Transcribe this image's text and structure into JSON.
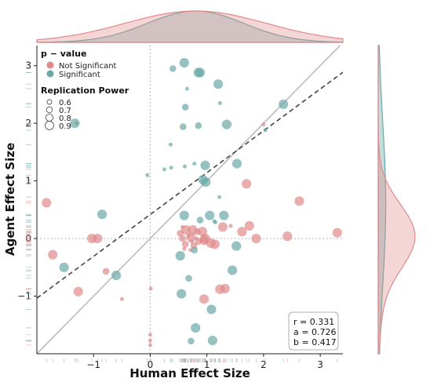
{
  "chart_data": {
    "type": "scatter",
    "xlabel": "Human Effect Size",
    "ylabel": "Agent Effect Size",
    "xlim": [
      -2.0,
      3.4
    ],
    "ylim": [
      -2.0,
      3.35
    ],
    "x_ticks": [
      "−1",
      "0",
      "1",
      "2",
      "3"
    ],
    "x_tick_values": [
      -1,
      0,
      1,
      2,
      3
    ],
    "y_ticks": [
      "−1",
      "0",
      "1",
      "2",
      "3"
    ],
    "y_tick_values": [
      -1,
      0,
      1,
      2,
      3
    ],
    "grid": false,
    "reference_lines": {
      "identity": {
        "slope": 1,
        "intercept": 0,
        "style": "solid"
      },
      "fit": {
        "slope": 0.726,
        "intercept": 0.417,
        "style": "dashed"
      },
      "zero_lines": "dotted"
    },
    "legend": {
      "placement": "top-left",
      "color_title": "p − value",
      "color_entries": [
        {
          "label": "Not Significant",
          "color": "#e08a8a"
        },
        {
          "label": "Significant",
          "color": "#6aa8a8"
        }
      ],
      "size_title": "Replication Power",
      "size_entries": [
        "0.6",
        "0.7",
        "0.8",
        "0.9"
      ]
    },
    "stats": {
      "r": "r = 0.331",
      "a": "a = 0.726",
      "b": "b = 0.417"
    },
    "colors": {
      "not_significant": "#e08a8a",
      "significant": "#6aa8a8",
      "identity_line": "#bbbbbb",
      "fit_line": "#444444"
    },
    "series": [
      {
        "name": "Not Significant",
        "points": [
          {
            "x": -1.83,
            "y": 0.62,
            "power": 0.8
          },
          {
            "x": -1.72,
            "y": -0.28,
            "power": 0.8
          },
          {
            "x": -1.3,
            "y": 2.0,
            "power": 0.6
          },
          {
            "x": -1.27,
            "y": -0.92,
            "power": 0.8
          },
          {
            "x": -1.03,
            "y": 0.0,
            "power": 0.8
          },
          {
            "x": -0.93,
            "y": 0.0,
            "power": 0.8
          },
          {
            "x": -0.78,
            "y": -0.57,
            "power": 0.7
          },
          {
            "x": -0.5,
            "y": -1.05,
            "power": 0.6
          },
          {
            "x": 0.01,
            "y": -0.87,
            "power": 0.6
          },
          {
            "x": 0.0,
            "y": -1.67,
            "power": 0.6
          },
          {
            "x": 0.0,
            "y": -1.77,
            "power": 0.6
          },
          {
            "x": 0.0,
            "y": -1.85,
            "power": 0.6
          },
          {
            "x": 0.53,
            "y": 0.09,
            "power": 0.7
          },
          {
            "x": 0.57,
            "y": 0.0,
            "power": 0.7
          },
          {
            "x": 0.62,
            "y": -0.1,
            "power": 0.7
          },
          {
            "x": 0.63,
            "y": 0.15,
            "power": 0.8
          },
          {
            "x": 0.68,
            "y": 0.05,
            "power": 0.6
          },
          {
            "x": 0.72,
            "y": 0.02,
            "power": 0.8
          },
          {
            "x": 0.73,
            "y": -0.05,
            "power": 0.6
          },
          {
            "x": 0.75,
            "y": 0.15,
            "power": 0.8
          },
          {
            "x": 0.77,
            "y": -0.12,
            "power": 0.7
          },
          {
            "x": 0.82,
            "y": 0.0,
            "power": 0.6
          },
          {
            "x": 0.83,
            "y": 0.12,
            "power": 0.7
          },
          {
            "x": 0.85,
            "y": -0.05,
            "power": 0.7
          },
          {
            "x": 0.92,
            "y": 0.12,
            "power": 0.8
          },
          {
            "x": 0.95,
            "y": -0.03,
            "power": 0.8
          },
          {
            "x": 0.97,
            "y": 0.0,
            "power": 0.8
          },
          {
            "x": 1.07,
            "y": -0.08,
            "power": 0.8
          },
          {
            "x": 1.14,
            "y": -0.1,
            "power": 0.8
          },
          {
            "x": 1.23,
            "y": -0.88,
            "power": 0.8
          },
          {
            "x": 1.32,
            "y": -0.87,
            "power": 0.8
          },
          {
            "x": 1.28,
            "y": 0.2,
            "power": 0.8
          },
          {
            "x": 1.42,
            "y": 0.22,
            "power": 0.6
          },
          {
            "x": 1.62,
            "y": 0.12,
            "power": 0.8
          },
          {
            "x": 1.75,
            "y": 0.22,
            "power": 0.8
          },
          {
            "x": 1.7,
            "y": 0.95,
            "power": 0.8
          },
          {
            "x": 0.95,
            "y": -1.05,
            "power": 0.8
          },
          {
            "x": 1.87,
            "y": 0.0,
            "power": 0.8
          },
          {
            "x": 2.0,
            "y": 1.98,
            "power": 0.6
          },
          {
            "x": 2.42,
            "y": 0.04,
            "power": 0.8
          },
          {
            "x": 2.63,
            "y": 0.65,
            "power": 0.8
          },
          {
            "x": 3.3,
            "y": 0.1,
            "power": 0.8
          },
          {
            "x": 0.6,
            "y": -0.18,
            "power": 0.6
          },
          {
            "x": 0.57,
            "y": 0.2,
            "power": 0.6
          },
          {
            "x": 0.71,
            "y": -0.2,
            "power": 0.6
          }
        ]
      },
      {
        "name": "Significant",
        "points": [
          {
            "x": -1.52,
            "y": -0.5,
            "power": 0.8
          },
          {
            "x": -1.33,
            "y": 2.0,
            "power": 0.8
          },
          {
            "x": -0.85,
            "y": 0.42,
            "power": 0.8
          },
          {
            "x": -0.6,
            "y": -0.64,
            "power": 0.8
          },
          {
            "x": 0.4,
            "y": 2.95,
            "power": 0.7
          },
          {
            "x": 0.6,
            "y": 3.05,
            "power": 0.8
          },
          {
            "x": 0.65,
            "y": 2.6,
            "power": 0.6
          },
          {
            "x": 0.62,
            "y": 2.28,
            "power": 0.7
          },
          {
            "x": 0.85,
            "y": 2.88,
            "power": 0.8
          },
          {
            "x": 0.88,
            "y": 2.88,
            "power": 0.8
          },
          {
            "x": 1.2,
            "y": 2.68,
            "power": 0.8
          },
          {
            "x": 1.23,
            "y": 2.35,
            "power": 0.6
          },
          {
            "x": 0.58,
            "y": 1.94,
            "power": 0.7
          },
          {
            "x": 0.85,
            "y": 1.96,
            "power": 0.7
          },
          {
            "x": 1.35,
            "y": 1.98,
            "power": 0.8
          },
          {
            "x": 2.03,
            "y": 1.88,
            "power": 0.6
          },
          {
            "x": 2.35,
            "y": 2.33,
            "power": 0.8
          },
          {
            "x": 0.36,
            "y": 1.63,
            "power": 0.6
          },
          {
            "x": 0.37,
            "y": 1.23,
            "power": 0.6
          },
          {
            "x": 0.61,
            "y": 1.25,
            "power": 0.6
          },
          {
            "x": 0.78,
            "y": 1.3,
            "power": 0.6
          },
          {
            "x": 0.97,
            "y": 1.27,
            "power": 0.8
          },
          {
            "x": 1.53,
            "y": 1.3,
            "power": 0.8
          },
          {
            "x": 0.93,
            "y": 1.02,
            "power": 0.8
          },
          {
            "x": 0.98,
            "y": 0.98,
            "power": 0.8
          },
          {
            "x": 1.22,
            "y": 0.72,
            "power": 0.6
          },
          {
            "x": 1.13,
            "y": 0.3,
            "power": 0.6
          },
          {
            "x": 0.6,
            "y": 0.4,
            "power": 0.8
          },
          {
            "x": 0.88,
            "y": 0.32,
            "power": 0.7
          },
          {
            "x": 1.05,
            "y": 0.4,
            "power": 0.8
          },
          {
            "x": 1.3,
            "y": 0.4,
            "power": 0.8
          },
          {
            "x": 1.15,
            "y": 0.28,
            "power": 0.6
          },
          {
            "x": 1.52,
            "y": -0.13,
            "power": 0.8
          },
          {
            "x": 0.53,
            "y": -0.3,
            "power": 0.8
          },
          {
            "x": 0.78,
            "y": -0.2,
            "power": 0.7
          },
          {
            "x": 0.68,
            "y": -0.69,
            "power": 0.7
          },
          {
            "x": 0.55,
            "y": -0.96,
            "power": 0.8
          },
          {
            "x": 1.45,
            "y": -0.55,
            "power": 0.8
          },
          {
            "x": 1.08,
            "y": -1.23,
            "power": 0.8
          },
          {
            "x": 0.8,
            "y": -1.55,
            "power": 0.8
          },
          {
            "x": 0.72,
            "y": -1.78,
            "power": 0.7
          },
          {
            "x": 1.1,
            "y": -1.77,
            "power": 0.8
          },
          {
            "x": -0.05,
            "y": 1.1,
            "power": 0.6
          },
          {
            "x": 0.25,
            "y": 1.2,
            "power": 0.6
          }
        ]
      }
    ],
    "marginal_x": {
      "not_significant": {
        "peak_x": 0.8,
        "spread": 1.25
      },
      "significant": {
        "peak_x": 0.8,
        "spread": 0.85
      }
    },
    "marginal_y": {
      "not_significant": {
        "peak_y": 0.05,
        "spread": 0.55,
        "tail": 0.7
      },
      "significant": {
        "peak_y": 0.6,
        "spread": 1.4
      }
    }
  }
}
